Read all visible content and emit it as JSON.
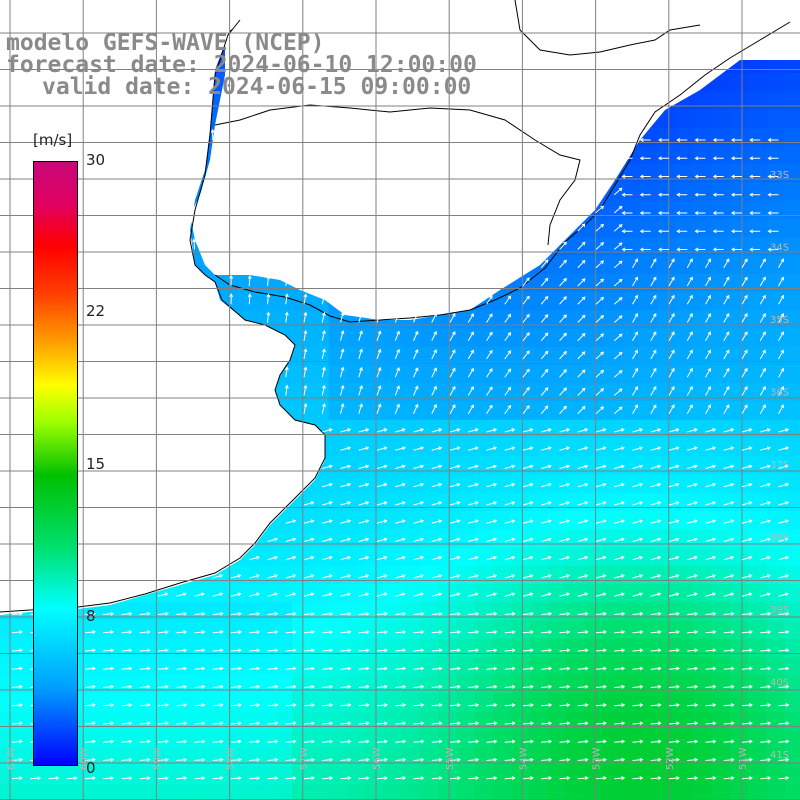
{
  "title": {
    "model": "modelo GEFS-WAVE (NCEP)",
    "forecast": "forecast date: 2024-06-10 12:00:00",
    "valid": "valid date: 2024-06-15 09:00:00"
  },
  "colorbar": {
    "unit": "[m/s]",
    "min": 0,
    "max": 30,
    "labels": [
      "30",
      "22",
      "15",
      "8",
      "0"
    ],
    "stops": [
      {
        "v": 0,
        "color": "#0000ff"
      },
      {
        "v": 4,
        "color": "#00a0ff"
      },
      {
        "v": 8,
        "color": "#00ffff"
      },
      {
        "v": 11,
        "color": "#00e070"
      },
      {
        "v": 14.5,
        "color": "#00c000"
      },
      {
        "v": 17,
        "color": "#a0ff00"
      },
      {
        "v": 19,
        "color": "#ffff00"
      },
      {
        "v": 21,
        "color": "#ffa000"
      },
      {
        "v": 23.5,
        "color": "#ff4000"
      },
      {
        "v": 26,
        "color": "#ff0000"
      },
      {
        "v": 30,
        "color": "#c8087a"
      }
    ]
  },
  "map": {
    "lat_labels": [
      "33S",
      "34S",
      "35S",
      "36S",
      "37S",
      "38S",
      "39S",
      "40S",
      "41S"
    ],
    "lon_labels": [
      "61W",
      "60W",
      "59W",
      "58W",
      "57W",
      "56W",
      "55W",
      "54W",
      "53W",
      "52W",
      "51W"
    ],
    "land_color": "#ffffff",
    "grid_color": "#808080",
    "arrow_color": "#ffffff"
  }
}
